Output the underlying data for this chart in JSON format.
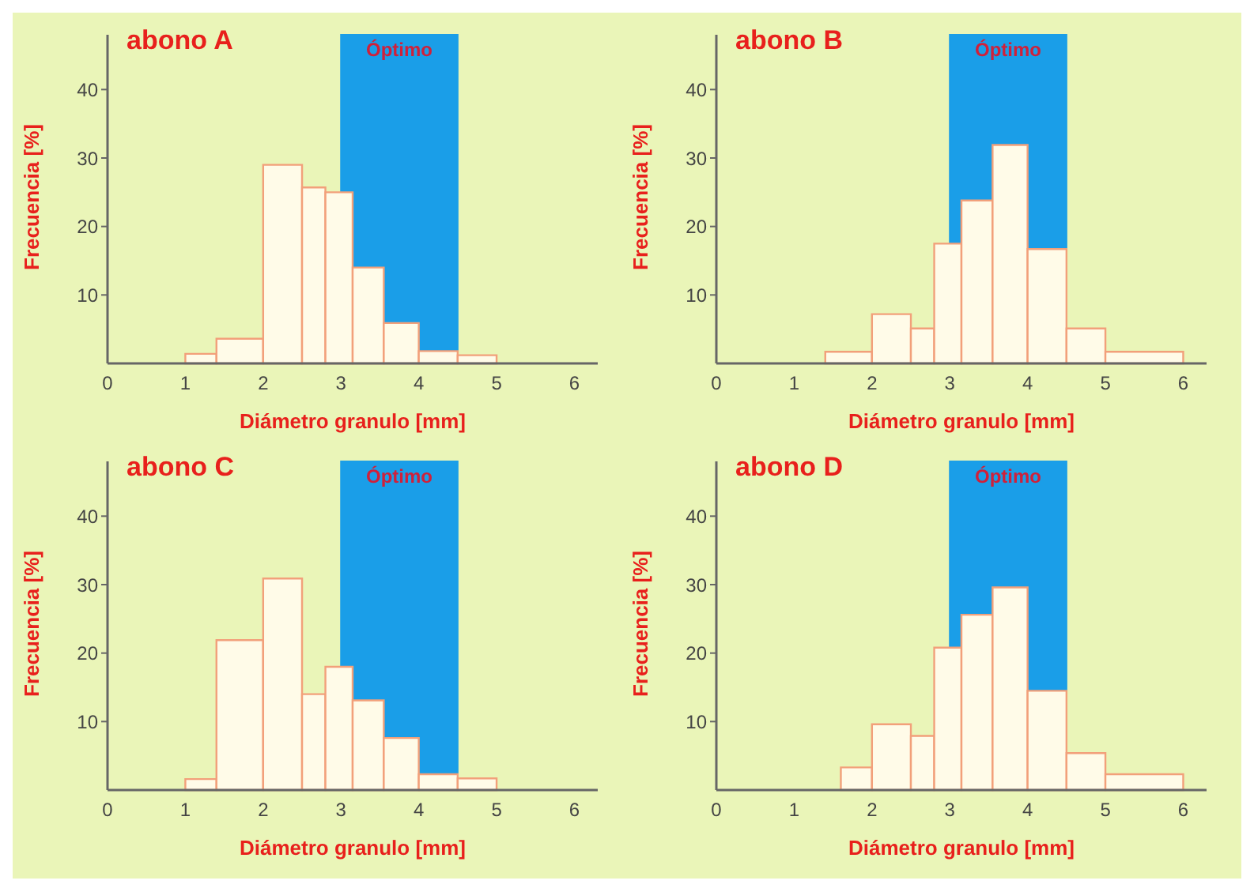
{
  "chart_data": [
    {
      "type": "histogram",
      "title": "abono A",
      "xlabel": "Diámetro granulo [mm]",
      "ylabel": "Frecuencia [%]",
      "bins": [
        1,
        1.4,
        2,
        2.5,
        2.8,
        3.15,
        3.55,
        4,
        4.5,
        5
      ],
      "values": [
        1.4,
        3.6,
        29,
        25.7,
        25,
        14,
        5.9,
        1.8,
        1.2
      ],
      "color": "#fffbe8",
      "xlim": [
        0,
        6.3
      ],
      "xticks": [
        0,
        1,
        2,
        3,
        4,
        5,
        6
      ],
      "ylim": [
        0,
        48
      ],
      "yticks": [
        10,
        20,
        30,
        40
      ],
      "bands": [
        {
          "axis": "x",
          "from": 3,
          "to": 4.5,
          "label": "Óptimo",
          "color": "#1a9ee8"
        }
      ]
    },
    {
      "type": "histogram",
      "title": "abono B",
      "xlabel": "Diámetro granulo [mm]",
      "ylabel": "Frecuencia [%]",
      "bins": [
        1.4,
        2,
        2.5,
        2.8,
        3.15,
        3.55,
        4,
        4.5,
        5,
        6
      ],
      "values": [
        1.7,
        7.2,
        5.1,
        17.5,
        23.8,
        31.9,
        16.7,
        5.1,
        1.7
      ],
      "color": "#fffbe8",
      "xlim": [
        0,
        6.3
      ],
      "xticks": [
        0,
        1,
        2,
        3,
        4,
        5,
        6
      ],
      "ylim": [
        0,
        48
      ],
      "yticks": [
        10,
        20,
        30,
        40
      ],
      "bands": [
        {
          "axis": "x",
          "from": 3,
          "to": 4.5,
          "label": "Óptimo",
          "color": "#1a9ee8"
        }
      ]
    },
    {
      "type": "histogram",
      "title": "abono C",
      "xlabel": "Diámetro granulo [mm]",
      "ylabel": "Frecuencia [%]",
      "bins": [
        1,
        1.4,
        2,
        2.5,
        2.8,
        3.15,
        3.55,
        4,
        4.5,
        5
      ],
      "values": [
        1.6,
        21.9,
        30.9,
        14,
        18,
        13.1,
        7.6,
        2.3,
        1.7
      ],
      "color": "#fffbe8",
      "xlim": [
        0,
        6.3
      ],
      "xticks": [
        0,
        1,
        2,
        3,
        4,
        5,
        6
      ],
      "ylim": [
        0,
        48
      ],
      "yticks": [
        10,
        20,
        30,
        40
      ],
      "bands": [
        {
          "axis": "x",
          "from": 3,
          "to": 4.5,
          "label": "Óptimo",
          "color": "#1a9ee8"
        }
      ]
    },
    {
      "type": "histogram",
      "title": "abono D",
      "xlabel": "Diámetro granulo [mm]",
      "ylabel": "Frecuencia [%]",
      "bins": [
        1.6,
        2,
        2.5,
        2.8,
        3.15,
        3.55,
        4,
        4.5,
        5,
        6
      ],
      "values": [
        3.3,
        9.6,
        7.9,
        20.8,
        25.6,
        29.6,
        14.5,
        5.4,
        2.3
      ],
      "color": "#fffbe8",
      "xlim": [
        0,
        6.3
      ],
      "xticks": [
        0,
        1,
        2,
        3,
        4,
        5,
        6
      ],
      "ylim": [
        0,
        48
      ],
      "yticks": [
        10,
        20,
        30,
        40
      ],
      "bands": [
        {
          "axis": "x",
          "from": 3,
          "to": 4.5,
          "label": "Óptimo",
          "color": "#1a9ee8"
        }
      ]
    }
  ]
}
